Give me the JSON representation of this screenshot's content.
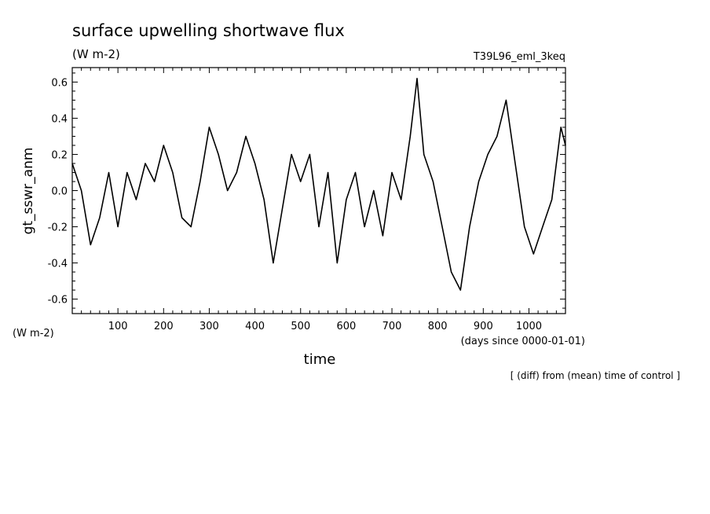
{
  "chart_data": {
    "type": "line",
    "title": "surface upwelling shortwave flux",
    "title_units": "(W m-2)",
    "experiment": "T39L96_eml_3keq",
    "ylabel": "gt_sswr_anm",
    "ylabel_units": "(W m-2)",
    "xlabel": "time",
    "xlabel_units": "(days since 0000-01-01)",
    "note": "[ (diff) from (mean) time of control ]",
    "xlim": [
      0,
      1080
    ],
    "ylim": [
      -0.68,
      0.68
    ],
    "x_ticks": [
      100,
      200,
      300,
      400,
      500,
      600,
      700,
      800,
      900,
      1000
    ],
    "y_ticks": [
      -0.6,
      -0.4,
      -0.2,
      0.0,
      0.2,
      0.4,
      0.6
    ],
    "y_tick_labels": [
      "-0.6",
      "-0.4",
      "-0.2",
      "0.0",
      "0.2",
      "0.4",
      "0.6"
    ],
    "line_color": "#000000",
    "series": [
      {
        "x": [
          0,
          20,
          40,
          60,
          80,
          100,
          120,
          140,
          160,
          180,
          200,
          220,
          240,
          260,
          280,
          300,
          320,
          340,
          360,
          380,
          400,
          420,
          440,
          460,
          480,
          500,
          520,
          540,
          560,
          580,
          600,
          620,
          640,
          660,
          680,
          700,
          720,
          740,
          755,
          770,
          790,
          810,
          830,
          850,
          870,
          890,
          910,
          930,
          950,
          970,
          990,
          1010,
          1030,
          1050,
          1070,
          1080
        ],
        "y": [
          0.15,
          0.0,
          -0.3,
          -0.15,
          0.1,
          -0.2,
          0.1,
          -0.05,
          0.15,
          0.05,
          0.25,
          0.1,
          -0.15,
          -0.2,
          0.05,
          0.35,
          0.2,
          0.0,
          0.1,
          0.3,
          0.15,
          -0.05,
          -0.4,
          -0.1,
          0.2,
          0.05,
          0.2,
          -0.2,
          0.1,
          -0.4,
          -0.05,
          0.1,
          -0.2,
          0.0,
          -0.25,
          0.1,
          -0.05,
          0.3,
          0.62,
          0.2,
          0.05,
          -0.2,
          -0.45,
          -0.55,
          -0.2,
          0.05,
          0.2,
          0.3,
          0.5,
          0.15,
          -0.2,
          -0.35,
          -0.2,
          -0.05,
          0.35,
          0.25
        ]
      }
    ]
  }
}
